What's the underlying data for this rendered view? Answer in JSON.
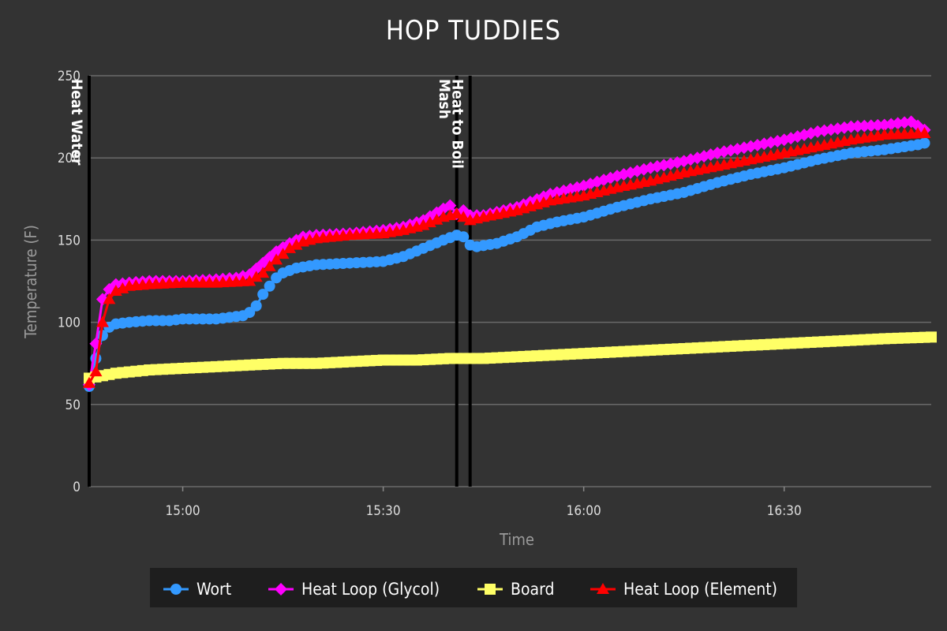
{
  "chart_data": {
    "type": "line",
    "title": "HOP TUDDIES",
    "xlabel": "Time",
    "ylabel": "Temperature (F)",
    "ylim": [
      0,
      250
    ],
    "xlim": [
      "14:46",
      "16:52"
    ],
    "y_ticks": [
      0,
      50,
      100,
      150,
      200,
      250
    ],
    "x_ticks": [
      "15:00",
      "15:30",
      "16:00",
      "16:30"
    ],
    "grid": true,
    "legend_position": "bottom",
    "events": [
      {
        "time": "14:46",
        "label": "Heat Water"
      },
      {
        "time": "15:41",
        "label": "Mash"
      },
      {
        "time": "15:43",
        "label": "Heat to Boil"
      }
    ],
    "series": [
      {
        "name": "Wort",
        "color": "#3399ff",
        "marker": "circle",
        "points": [
          [
            "14:46",
            61
          ],
          [
            "14:47",
            78
          ],
          [
            "14:48",
            92
          ],
          [
            "14:49",
            97
          ],
          [
            "14:50",
            99
          ],
          [
            "14:52",
            100
          ],
          [
            "14:55",
            101
          ],
          [
            "14:58",
            101
          ],
          [
            "15:00",
            102
          ],
          [
            "15:05",
            102
          ],
          [
            "15:07",
            103
          ],
          [
            "15:09",
            104
          ],
          [
            "15:10",
            106
          ],
          [
            "15:11",
            110
          ],
          [
            "15:12",
            117
          ],
          [
            "15:13",
            122
          ],
          [
            "15:14",
            127
          ],
          [
            "15:15",
            130
          ],
          [
            "15:17",
            133
          ],
          [
            "15:20",
            135
          ],
          [
            "15:25",
            136
          ],
          [
            "15:30",
            137
          ],
          [
            "15:33",
            140
          ],
          [
            "15:36",
            145
          ],
          [
            "15:39",
            150
          ],
          [
            "15:41",
            153
          ],
          [
            "15:42",
            152
          ],
          [
            "15:43",
            147
          ],
          [
            "15:44",
            146
          ],
          [
            "15:47",
            148
          ],
          [
            "15:50",
            152
          ],
          [
            "15:53",
            158
          ],
          [
            "15:56",
            161
          ],
          [
            "16:00",
            164
          ],
          [
            "16:05",
            170
          ],
          [
            "16:10",
            175
          ],
          [
            "16:15",
            179
          ],
          [
            "16:20",
            185
          ],
          [
            "16:25",
            190
          ],
          [
            "16:30",
            194
          ],
          [
            "16:35",
            199
          ],
          [
            "16:40",
            203
          ],
          [
            "16:45",
            205
          ],
          [
            "16:50",
            208
          ],
          [
            "16:51",
            209
          ]
        ]
      },
      {
        "name": "Heat Loop (Glycol)",
        "color": "#ff00ff",
        "marker": "diamond",
        "points": [
          [
            "14:46",
            62
          ],
          [
            "14:47",
            87
          ],
          [
            "14:48",
            114
          ],
          [
            "14:49",
            120
          ],
          [
            "14:50",
            123
          ],
          [
            "14:52",
            124
          ],
          [
            "14:55",
            125
          ],
          [
            "15:00",
            125
          ],
          [
            "15:05",
            126
          ],
          [
            "15:08",
            127
          ],
          [
            "15:10",
            129
          ],
          [
            "15:12",
            136
          ],
          [
            "15:14",
            143
          ],
          [
            "15:16",
            148
          ],
          [
            "15:18",
            152
          ],
          [
            "15:20",
            153
          ],
          [
            "15:25",
            154
          ],
          [
            "15:30",
            156
          ],
          [
            "15:33",
            158
          ],
          [
            "15:36",
            162
          ],
          [
            "15:39",
            169
          ],
          [
            "15:40",
            171
          ],
          [
            "15:41",
            166
          ],
          [
            "15:42",
            168
          ],
          [
            "15:43",
            165
          ],
          [
            "15:45",
            165
          ],
          [
            "15:50",
            170
          ],
          [
            "15:55",
            178
          ],
          [
            "16:00",
            183
          ],
          [
            "16:05",
            189
          ],
          [
            "16:10",
            194
          ],
          [
            "16:15",
            198
          ],
          [
            "16:20",
            203
          ],
          [
            "16:25",
            207
          ],
          [
            "16:30",
            211
          ],
          [
            "16:35",
            216
          ],
          [
            "16:40",
            219
          ],
          [
            "16:45",
            220
          ],
          [
            "16:49",
            222
          ],
          [
            "16:51",
            217
          ]
        ]
      },
      {
        "name": "Board",
        "color": "#ffff66",
        "marker": "square",
        "points": [
          [
            "14:46",
            66
          ],
          [
            "14:50",
            69
          ],
          [
            "14:55",
            71
          ],
          [
            "15:00",
            72
          ],
          [
            "15:05",
            73
          ],
          [
            "15:10",
            74
          ],
          [
            "15:15",
            75
          ],
          [
            "15:20",
            75
          ],
          [
            "15:25",
            76
          ],
          [
            "15:30",
            77
          ],
          [
            "15:35",
            77
          ],
          [
            "15:40",
            78
          ],
          [
            "15:45",
            78
          ],
          [
            "15:50",
            79
          ],
          [
            "15:55",
            80
          ],
          [
            "16:00",
            81
          ],
          [
            "16:05",
            82
          ],
          [
            "16:10",
            83
          ],
          [
            "16:15",
            84
          ],
          [
            "16:20",
            85
          ],
          [
            "16:25",
            86
          ],
          [
            "16:30",
            87
          ],
          [
            "16:35",
            88
          ],
          [
            "16:40",
            89
          ],
          [
            "16:45",
            90
          ],
          [
            "16:52",
            91
          ]
        ]
      },
      {
        "name": "Heat Loop (Element)",
        "color": "#ff0000",
        "marker": "triangle",
        "points": [
          [
            "14:46",
            63
          ],
          [
            "14:47",
            70
          ],
          [
            "14:48",
            100
          ],
          [
            "14:49",
            114
          ],
          [
            "14:50",
            119
          ],
          [
            "14:52",
            122
          ],
          [
            "14:55",
            123
          ],
          [
            "15:00",
            124
          ],
          [
            "15:05",
            124
          ],
          [
            "15:10",
            125
          ],
          [
            "15:12",
            130
          ],
          [
            "15:14",
            138
          ],
          [
            "15:16",
            145
          ],
          [
            "15:18",
            149
          ],
          [
            "15:20",
            151
          ],
          [
            "15:25",
            153
          ],
          [
            "15:30",
            154
          ],
          [
            "15:33",
            156
          ],
          [
            "15:36",
            159
          ],
          [
            "15:39",
            164
          ],
          [
            "15:41",
            166
          ],
          [
            "15:43",
            162
          ],
          [
            "15:45",
            164
          ],
          [
            "15:50",
            168
          ],
          [
            "15:55",
            174
          ],
          [
            "16:00",
            177
          ],
          [
            "16:05",
            182
          ],
          [
            "16:10",
            186
          ],
          [
            "16:15",
            191
          ],
          [
            "16:20",
            195
          ],
          [
            "16:25",
            199
          ],
          [
            "16:30",
            203
          ],
          [
            "16:35",
            207
          ],
          [
            "16:40",
            211
          ],
          [
            "16:45",
            214
          ],
          [
            "16:51",
            215
          ]
        ]
      }
    ]
  }
}
